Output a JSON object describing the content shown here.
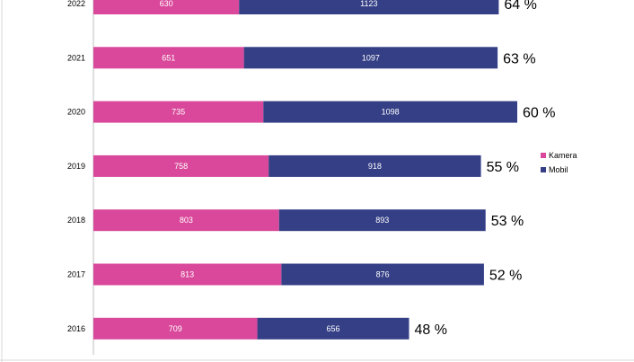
{
  "chart_data": {
    "type": "bar",
    "orientation": "horizontal",
    "stacked": true,
    "categories": [
      "2022",
      "2021",
      "2020",
      "2019",
      "2018",
      "2017",
      "2016"
    ],
    "series": [
      {
        "name": "Kamera",
        "color": "#d9489a",
        "values": [
          630,
          651,
          735,
          758,
          803,
          813,
          709
        ]
      },
      {
        "name": "Mobil",
        "color": "#343f86",
        "values": [
          1123,
          1097,
          1098,
          918,
          893,
          876,
          656
        ]
      }
    ],
    "end_labels": [
      "64 %",
      "63 %",
      "60 %",
      "55 %",
      "53 %",
      "52 %",
      "48 %"
    ],
    "xlim": [
      0,
      2000
    ],
    "grid": false,
    "legend_position": "right"
  }
}
